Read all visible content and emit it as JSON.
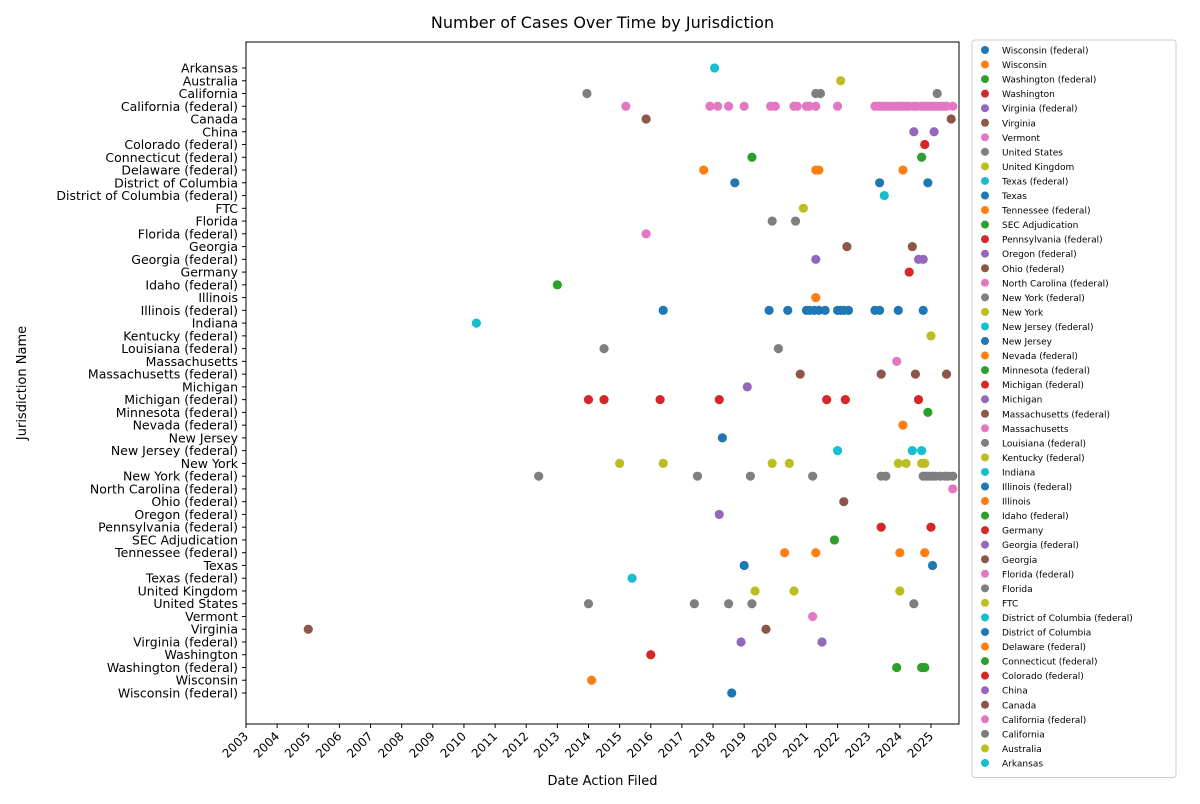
{
  "chart_data": {
    "type": "scatter",
    "title": "Number of Cases Over Time by Jurisdiction",
    "xlabel": "Date Action Filed",
    "ylabel": "Jurisdiction Name",
    "xlim": [
      2003.0,
      2025.9
    ],
    "x_ticks": [
      "2003",
      "2004",
      "2005",
      "2006",
      "2007",
      "2008",
      "2009",
      "2010",
      "2011",
      "2012",
      "2013",
      "2014",
      "2015",
      "2016",
      "2017",
      "2018",
      "2019",
      "2020",
      "2021",
      "2022",
      "2023",
      "2024",
      "2025"
    ],
    "grid": false,
    "legend_position": "outside-right",
    "y_categories_top_to_bottom": [
      "Arkansas",
      "Australia",
      "California",
      "California (federal)",
      "Canada",
      "China",
      "Colorado (federal)",
      "Connecticut (federal)",
      "Delaware (federal)",
      "District of Columbia",
      "District of Columbia (federal)",
      "FTC",
      "Florida",
      "Florida (federal)",
      "Georgia",
      "Georgia (federal)",
      "Germany",
      "Idaho (federal)",
      "Illinois",
      "Illinois (federal)",
      "Indiana",
      "Kentucky (federal)",
      "Louisiana (federal)",
      "Massachusetts",
      "Massachusetts (federal)",
      "Michigan",
      "Michigan (federal)",
      "Minnesota (federal)",
      "Nevada (federal)",
      "New Jersey",
      "New Jersey (federal)",
      "New York",
      "New York (federal)",
      "North Carolina (federal)",
      "Ohio (federal)",
      "Oregon (federal)",
      "Pennsylvania (federal)",
      "SEC Adjudication",
      "Tennessee (federal)",
      "Texas",
      "Texas (federal)",
      "United Kingdom",
      "United States",
      "Vermont",
      "Virginia",
      "Virginia (federal)",
      "Washington",
      "Washington (federal)",
      "Wisconsin",
      "Wisconsin (federal)"
    ],
    "series": [
      {
        "name": "Wisconsin (federal)",
        "color": "#1f77b4",
        "x": [
          2018.6
        ]
      },
      {
        "name": "Wisconsin",
        "color": "#ff7f0e",
        "x": [
          2014.1
        ]
      },
      {
        "name": "Washington (federal)",
        "color": "#2ca02c",
        "x": [
          2023.9,
          2024.7,
          2024.8
        ]
      },
      {
        "name": "Washington",
        "color": "#d62728",
        "x": [
          2016.0
        ]
      },
      {
        "name": "Virginia (federal)",
        "color": "#9467bd",
        "x": [
          2018.9,
          2021.5
        ]
      },
      {
        "name": "Virginia",
        "color": "#8c564b",
        "x": [
          2005.0,
          2019.7
        ]
      },
      {
        "name": "Vermont",
        "color": "#e377c2",
        "x": [
          2021.2
        ]
      },
      {
        "name": "United States",
        "color": "#7f7f7f",
        "x": [
          2014.0,
          2017.4,
          2018.5,
          2019.25,
          2024.45
        ]
      },
      {
        "name": "United Kingdom",
        "color": "#bcbd22",
        "x": [
          2019.35,
          2020.6,
          2024.0
        ]
      },
      {
        "name": "Texas (federal)",
        "color": "#17becf",
        "x": [
          2015.4
        ]
      },
      {
        "name": "Texas",
        "color": "#1f77b4",
        "x": [
          2019.0,
          2025.05
        ]
      },
      {
        "name": "Tennessee (federal)",
        "color": "#ff7f0e",
        "x": [
          2020.3,
          2021.3,
          2024.0,
          2024.8
        ]
      },
      {
        "name": "SEC Adjudication",
        "color": "#2ca02c",
        "x": [
          2021.9
        ]
      },
      {
        "name": "Pennsylvania (federal)",
        "color": "#d62728",
        "x": [
          2023.4,
          2025.0
        ]
      },
      {
        "name": "Oregon (federal)",
        "color": "#9467bd",
        "x": [
          2018.2
        ]
      },
      {
        "name": "Ohio (federal)",
        "color": "#8c564b",
        "x": [
          2022.2
        ]
      },
      {
        "name": "North Carolina (federal)",
        "color": "#e377c2",
        "x": [
          2025.7
        ]
      },
      {
        "name": "New York (federal)",
        "color": "#7f7f7f",
        "x": [
          2012.4,
          2017.5,
          2019.2,
          2021.2,
          2023.4,
          2023.55,
          2024.75,
          2024.85,
          2024.95,
          2025.05,
          2025.15,
          2025.3,
          2025.45,
          2025.55,
          2025.7
        ]
      },
      {
        "name": "New York",
        "color": "#bcbd22",
        "x": [
          2015.0,
          2016.4,
          2019.9,
          2020.45,
          2023.95,
          2024.2,
          2024.7,
          2024.8
        ]
      },
      {
        "name": "New Jersey (federal)",
        "color": "#17becf",
        "x": [
          2022.0,
          2024.4,
          2024.7
        ]
      },
      {
        "name": "New Jersey",
        "color": "#1f77b4",
        "x": [
          2018.3
        ]
      },
      {
        "name": "Nevada (federal)",
        "color": "#ff7f0e",
        "x": [
          2024.1
        ]
      },
      {
        "name": "Minnesota (federal)",
        "color": "#2ca02c",
        "x": [
          2024.9
        ]
      },
      {
        "name": "Michigan (federal)",
        "color": "#d62728",
        "x": [
          2014.0,
          2014.5,
          2016.3,
          2018.2,
          2021.65,
          2022.25,
          2024.6
        ]
      },
      {
        "name": "Michigan",
        "color": "#9467bd",
        "x": [
          2019.1
        ]
      },
      {
        "name": "Massachusetts (federal)",
        "color": "#8c564b",
        "x": [
          2020.8,
          2023.4,
          2024.5,
          2025.5
        ]
      },
      {
        "name": "Massachusetts",
        "color": "#e377c2",
        "x": [
          2023.9
        ]
      },
      {
        "name": "Louisiana (federal)",
        "color": "#7f7f7f",
        "x": [
          2014.5,
          2020.1
        ]
      },
      {
        "name": "Kentucky (federal)",
        "color": "#bcbd22",
        "x": [
          2025.0
        ]
      },
      {
        "name": "Indiana",
        "color": "#17becf",
        "x": [
          2010.4
        ]
      },
      {
        "name": "Illinois (federal)",
        "color": "#1f77b4",
        "x": [
          2016.4,
          2019.8,
          2020.4,
          2021.0,
          2021.1,
          2021.25,
          2021.4,
          2021.6,
          2022.0,
          2022.1,
          2022.2,
          2022.35,
          2023.2,
          2023.35,
          2023.95,
          2024.75
        ]
      },
      {
        "name": "Illinois",
        "color": "#ff7f0e",
        "x": [
          2021.3
        ]
      },
      {
        "name": "Idaho (federal)",
        "color": "#2ca02c",
        "x": [
          2013.0
        ]
      },
      {
        "name": "Germany",
        "color": "#d62728",
        "x": [
          2024.3
        ]
      },
      {
        "name": "Georgia (federal)",
        "color": "#9467bd",
        "x": [
          2021.3,
          2024.6,
          2024.75
        ]
      },
      {
        "name": "Georgia",
        "color": "#8c564b",
        "x": [
          2022.3,
          2024.4
        ]
      },
      {
        "name": "Florida (federal)",
        "color": "#e377c2",
        "x": [
          2015.85
        ]
      },
      {
        "name": "Florida",
        "color": "#7f7f7f",
        "x": [
          2019.9,
          2020.65
        ]
      },
      {
        "name": "FTC",
        "color": "#bcbd22",
        "x": [
          2020.9
        ]
      },
      {
        "name": "District of Columbia (federal)",
        "color": "#17becf",
        "x": [
          2023.5
        ]
      },
      {
        "name": "District of Columbia",
        "color": "#1f77b4",
        "x": [
          2018.7,
          2023.35,
          2024.9
        ]
      },
      {
        "name": "Delaware (federal)",
        "color": "#ff7f0e",
        "x": [
          2017.7,
          2021.3,
          2021.4,
          2024.1
        ]
      },
      {
        "name": "Connecticut (federal)",
        "color": "#2ca02c",
        "x": [
          2019.25,
          2024.7
        ]
      },
      {
        "name": "Colorado (federal)",
        "color": "#d62728",
        "x": [
          2024.8
        ]
      },
      {
        "name": "China",
        "color": "#9467bd",
        "x": [
          2024.45,
          2025.1
        ]
      },
      {
        "name": "Canada",
        "color": "#8c564b",
        "x": [
          2015.85,
          2025.65
        ]
      },
      {
        "name": "California (federal)",
        "color": "#e377c2",
        "x": [
          2015.2,
          2017.9,
          2018.15,
          2018.5,
          2019.0,
          2019.85,
          2020.0,
          2020.6,
          2020.7,
          2021.0,
          2021.1,
          2021.3,
          2022.0,
          2023.2,
          2023.3,
          2023.4,
          2023.5,
          2023.6,
          2023.7,
          2023.8,
          2023.9,
          2024.0,
          2024.1,
          2024.2,
          2024.3,
          2024.45,
          2024.55,
          2024.7,
          2024.8,
          2024.9,
          2025.0,
          2025.1,
          2025.2,
          2025.3,
          2025.4,
          2025.5,
          2025.7
        ]
      },
      {
        "name": "California",
        "color": "#7f7f7f",
        "x": [
          2013.95,
          2021.3,
          2021.45,
          2025.2
        ]
      },
      {
        "name": "Australia",
        "color": "#bcbd22",
        "x": [
          2022.1
        ]
      },
      {
        "name": "Arkansas",
        "color": "#17becf",
        "x": [
          2018.05
        ]
      }
    ]
  }
}
